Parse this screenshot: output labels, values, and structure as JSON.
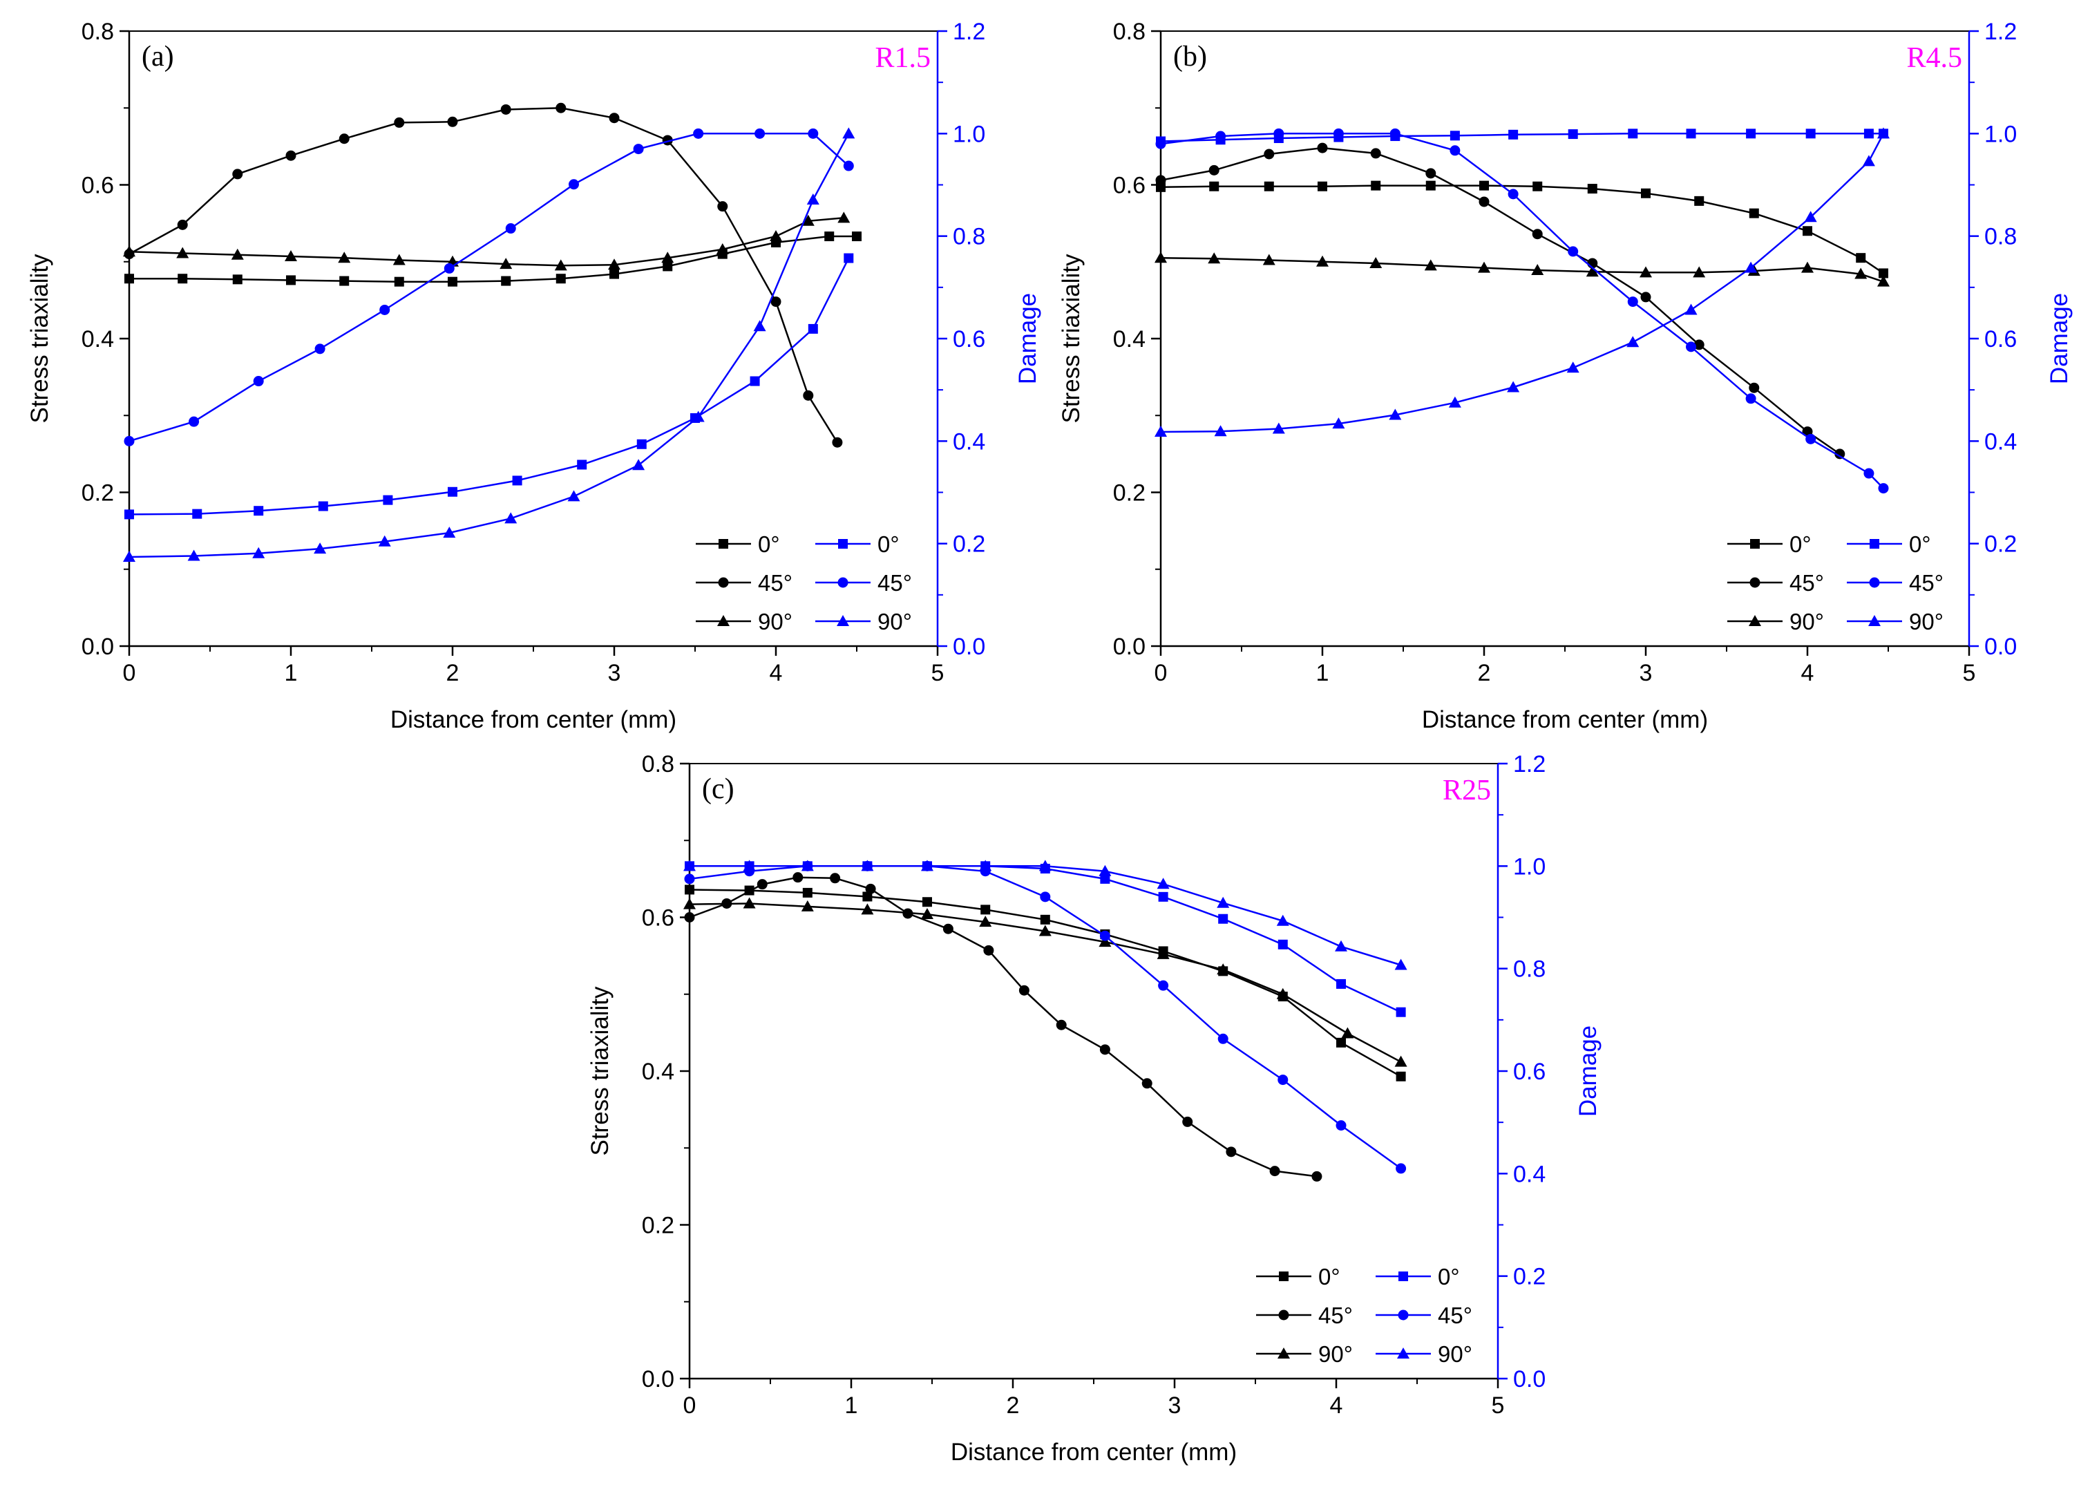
{
  "chart_data": [
    {
      "id": "a",
      "type": "line",
      "panel_label": "(a)",
      "specimen_label": "R1.5",
      "xlabel": "Distance from center (mm)",
      "ylabel": "Stress triaxiality",
      "y2label": "Damage",
      "xlim": [
        0,
        5
      ],
      "ylim": [
        0,
        0.8
      ],
      "y2lim": [
        0,
        1.2
      ],
      "xticks": [
        "0",
        "1",
        "2",
        "3",
        "4",
        "5"
      ],
      "yticks": [
        "0.0",
        "0.2",
        "0.4",
        "0.6",
        "0.8"
      ],
      "y2ticks": [
        "0.0",
        "0.2",
        "0.4",
        "0.6",
        "0.8",
        "1.0",
        "1.2"
      ],
      "legend_position": "bottom-right",
      "series": [
        {
          "name": "0°",
          "axis": "left",
          "color": "#000000",
          "marker": "square",
          "x": [
            0,
            0.33,
            0.67,
            1.0,
            1.33,
            1.67,
            2.0,
            2.33,
            2.67,
            3.0,
            3.33,
            3.67,
            4.0,
            4.33,
            4.5
          ],
          "y": [
            0.478,
            0.478,
            0.477,
            0.476,
            0.475,
            0.474,
            0.474,
            0.475,
            0.478,
            0.484,
            0.494,
            0.51,
            0.525,
            0.533,
            0.533
          ]
        },
        {
          "name": "45°",
          "axis": "left",
          "color": "#000000",
          "marker": "circle",
          "x": [
            0,
            0.33,
            0.67,
            1.0,
            1.33,
            1.67,
            2.0,
            2.33,
            2.67,
            3.0,
            3.33,
            3.67,
            4.0,
            4.2,
            4.38
          ],
          "y": [
            0.51,
            0.548,
            0.614,
            0.638,
            0.66,
            0.681,
            0.682,
            0.698,
            0.7,
            0.687,
            0.658,
            0.572,
            0.448,
            0.326,
            0.265
          ]
        },
        {
          "name": "90°",
          "axis": "left",
          "color": "#000000",
          "marker": "triangle",
          "x": [
            0,
            0.33,
            0.67,
            1.0,
            1.33,
            1.67,
            2.0,
            2.33,
            2.67,
            3.0,
            3.33,
            3.67,
            4.0,
            4.2,
            4.42
          ],
          "y": [
            0.513,
            0.511,
            0.509,
            0.507,
            0.505,
            0.502,
            0.5,
            0.497,
            0.495,
            0.496,
            0.505,
            0.516,
            0.533,
            0.553,
            0.557
          ]
        },
        {
          "name": "0°",
          "axis": "right",
          "color": "#0000ff",
          "marker": "square",
          "x": [
            0,
            0.42,
            0.8,
            1.2,
            1.6,
            2.0,
            2.4,
            2.8,
            3.17,
            3.5,
            3.87,
            4.23,
            4.45
          ],
          "y": [
            0.257,
            0.258,
            0.264,
            0.273,
            0.285,
            0.301,
            0.323,
            0.354,
            0.394,
            0.445,
            0.517,
            0.619,
            0.757
          ]
        },
        {
          "name": "45°",
          "axis": "right",
          "color": "#0000ff",
          "marker": "circle",
          "x": [
            0,
            0.4,
            0.8,
            1.18,
            1.58,
            1.98,
            2.36,
            2.75,
            3.15,
            3.52,
            3.9,
            4.23,
            4.45
          ],
          "y": [
            0.4,
            0.438,
            0.517,
            0.58,
            0.656,
            0.737,
            0.815,
            0.901,
            0.97,
            1.0,
            1.0,
            1.0,
            0.937
          ]
        },
        {
          "name": "90°",
          "axis": "right",
          "color": "#0000ff",
          "marker": "triangle",
          "x": [
            0,
            0.4,
            0.8,
            1.18,
            1.58,
            1.98,
            2.36,
            2.75,
            3.15,
            3.52,
            3.9,
            4.23,
            4.45
          ],
          "y": [
            0.174,
            0.176,
            0.181,
            0.19,
            0.204,
            0.221,
            0.249,
            0.292,
            0.353,
            0.447,
            0.624,
            0.871,
            1.0
          ]
        }
      ]
    },
    {
      "id": "b",
      "type": "line",
      "panel_label": "(b)",
      "specimen_label": "R4.5",
      "xlabel": "Distance from center (mm)",
      "ylabel": "Stress triaxiality",
      "y2label": "Damage",
      "xlim": [
        0,
        5
      ],
      "ylim": [
        0,
        0.8
      ],
      "y2lim": [
        0,
        1.2
      ],
      "xticks": [
        "0",
        "1",
        "2",
        "3",
        "4",
        "5"
      ],
      "yticks": [
        "0.0",
        "0.2",
        "0.4",
        "0.6",
        "0.8"
      ],
      "y2ticks": [
        "0.0",
        "0.2",
        "0.4",
        "0.6",
        "0.8",
        "1.0",
        "1.2"
      ],
      "legend_position": "bottom-right",
      "series": [
        {
          "name": "0°",
          "axis": "left",
          "color": "#000000",
          "marker": "square",
          "x": [
            0,
            0.33,
            0.67,
            1.0,
            1.33,
            1.67,
            2.0,
            2.33,
            2.67,
            3.0,
            3.33,
            3.67,
            4.0,
            4.33,
            4.47
          ],
          "y": [
            0.597,
            0.598,
            0.598,
            0.598,
            0.599,
            0.599,
            0.599,
            0.598,
            0.595,
            0.589,
            0.579,
            0.563,
            0.54,
            0.505,
            0.485
          ]
        },
        {
          "name": "45°",
          "axis": "left",
          "color": "#000000",
          "marker": "circle",
          "x": [
            0,
            0.33,
            0.67,
            1.0,
            1.33,
            1.67,
            2.0,
            2.33,
            2.67,
            3.0,
            3.33,
            3.67,
            4.0,
            4.2
          ],
          "y": [
            0.606,
            0.619,
            0.64,
            0.648,
            0.641,
            0.615,
            0.578,
            0.536,
            0.498,
            0.454,
            0.392,
            0.336,
            0.279,
            0.25
          ]
        },
        {
          "name": "90°",
          "axis": "left",
          "color": "#000000",
          "marker": "triangle",
          "x": [
            0,
            0.33,
            0.67,
            1.0,
            1.33,
            1.67,
            2.0,
            2.33,
            2.67,
            3.0,
            3.33,
            3.67,
            4.0,
            4.33,
            4.47
          ],
          "y": [
            0.505,
            0.504,
            0.502,
            0.5,
            0.498,
            0.495,
            0.492,
            0.489,
            0.487,
            0.486,
            0.486,
            0.488,
            0.492,
            0.484,
            0.474
          ]
        },
        {
          "name": "0°",
          "axis": "right",
          "color": "#0000ff",
          "marker": "square",
          "x": [
            0,
            0.37,
            0.73,
            1.1,
            1.45,
            1.82,
            2.18,
            2.55,
            2.92,
            3.28,
            3.65,
            4.02,
            4.38,
            4.47
          ],
          "y": [
            0.985,
            0.988,
            0.991,
            0.993,
            0.995,
            0.996,
            0.998,
            0.999,
            1.0,
            1.0,
            1.0,
            1.0,
            1.0,
            1.0
          ]
        },
        {
          "name": "45°",
          "axis": "right",
          "color": "#0000ff",
          "marker": "circle",
          "x": [
            0,
            0.37,
            0.73,
            1.1,
            1.45,
            1.82,
            2.18,
            2.55,
            2.92,
            3.28,
            3.65,
            4.02,
            4.38,
            4.47
          ],
          "y": [
            0.98,
            0.995,
            1.0,
            1.0,
            1.0,
            0.967,
            0.882,
            0.77,
            0.672,
            0.584,
            0.483,
            0.404,
            0.337,
            0.308
          ]
        },
        {
          "name": "90°",
          "axis": "right",
          "color": "#0000ff",
          "marker": "triangle",
          "x": [
            0,
            0.37,
            0.73,
            1.1,
            1.45,
            1.82,
            2.18,
            2.55,
            2.92,
            3.28,
            3.65,
            4.02,
            4.38,
            4.47
          ],
          "y": [
            0.418,
            0.419,
            0.424,
            0.434,
            0.451,
            0.475,
            0.505,
            0.543,
            0.593,
            0.656,
            0.738,
            0.837,
            0.946,
            1.0
          ]
        }
      ]
    },
    {
      "id": "c",
      "type": "line",
      "panel_label": "(c)",
      "specimen_label": "R25",
      "xlabel": "Distance from center (mm)",
      "ylabel": "Stress triaxiality",
      "y2label": "Damage",
      "xlim": [
        0,
        5
      ],
      "ylim": [
        0,
        0.8
      ],
      "y2lim": [
        0,
        1.2
      ],
      "xticks": [
        "0",
        "1",
        "2",
        "3",
        "4",
        "5"
      ],
      "yticks": [
        "0.0",
        "0.2",
        "0.4",
        "0.6",
        "0.8"
      ],
      "y2ticks": [
        "0.0",
        "0.2",
        "0.4",
        "0.6",
        "0.8",
        "1.0",
        "1.2"
      ],
      "legend_position": "bottom-right",
      "series": [
        {
          "name": "0°",
          "axis": "left",
          "color": "#000000",
          "marker": "square",
          "x": [
            0,
            0.37,
            0.73,
            1.1,
            1.47,
            1.83,
            2.2,
            2.57,
            2.93,
            3.3,
            3.67,
            4.03,
            4.4
          ],
          "y": [
            0.636,
            0.635,
            0.632,
            0.627,
            0.62,
            0.61,
            0.597,
            0.578,
            0.556,
            0.53,
            0.497,
            0.437,
            0.393
          ]
        },
        {
          "name": "45°",
          "axis": "left",
          "color": "#000000",
          "marker": "circle",
          "x": [
            0,
            0.23,
            0.45,
            0.67,
            0.9,
            1.12,
            1.35,
            1.6,
            1.85,
            2.07,
            2.3,
            2.57,
            2.83,
            3.08,
            3.35,
            3.62,
            3.88
          ],
          "y": [
            0.6,
            0.618,
            0.643,
            0.652,
            0.651,
            0.637,
            0.605,
            0.585,
            0.557,
            0.505,
            0.46,
            0.428,
            0.384,
            0.334,
            0.295,
            0.27,
            0.263
          ]
        },
        {
          "name": "90°",
          "axis": "left",
          "color": "#000000",
          "marker": "triangle",
          "x": [
            0,
            0.37,
            0.73,
            1.1,
            1.47,
            1.83,
            2.2,
            2.57,
            2.93,
            3.3,
            3.67,
            4.07,
            4.4
          ],
          "y": [
            0.617,
            0.618,
            0.614,
            0.61,
            0.604,
            0.594,
            0.582,
            0.568,
            0.552,
            0.532,
            0.5,
            0.449,
            0.412
          ]
        },
        {
          "name": "0°",
          "axis": "right",
          "color": "#0000ff",
          "marker": "square",
          "x": [
            0,
            0.37,
            0.73,
            1.1,
            1.47,
            1.83,
            2.2,
            2.57,
            2.93,
            3.3,
            3.67,
            4.03,
            4.4
          ],
          "y": [
            1.0,
            1.0,
            1.0,
            1.0,
            1.0,
            1.0,
            0.995,
            0.975,
            0.94,
            0.897,
            0.847,
            0.77,
            0.715
          ]
        },
        {
          "name": "45°",
          "axis": "right",
          "color": "#0000ff",
          "marker": "circle",
          "x": [
            0,
            0.37,
            0.73,
            1.1,
            1.47,
            1.83,
            2.2,
            2.57,
            2.93,
            3.3,
            3.67,
            4.03,
            4.4
          ],
          "y": [
            0.975,
            0.99,
            1.0,
            1.0,
            1.0,
            0.99,
            0.94,
            0.864,
            0.767,
            0.663,
            0.583,
            0.494,
            0.41
          ]
        },
        {
          "name": "90°",
          "axis": "right",
          "color": "#0000ff",
          "marker": "triangle",
          "x": [
            0,
            0.37,
            0.73,
            1.1,
            1.47,
            1.83,
            2.2,
            2.57,
            2.93,
            3.3,
            3.67,
            4.03,
            4.4
          ],
          "y": [
            1.0,
            1.0,
            1.0,
            1.0,
            1.0,
            1.0,
            1.0,
            0.99,
            0.965,
            0.928,
            0.893,
            0.843,
            0.807
          ]
        }
      ]
    }
  ]
}
